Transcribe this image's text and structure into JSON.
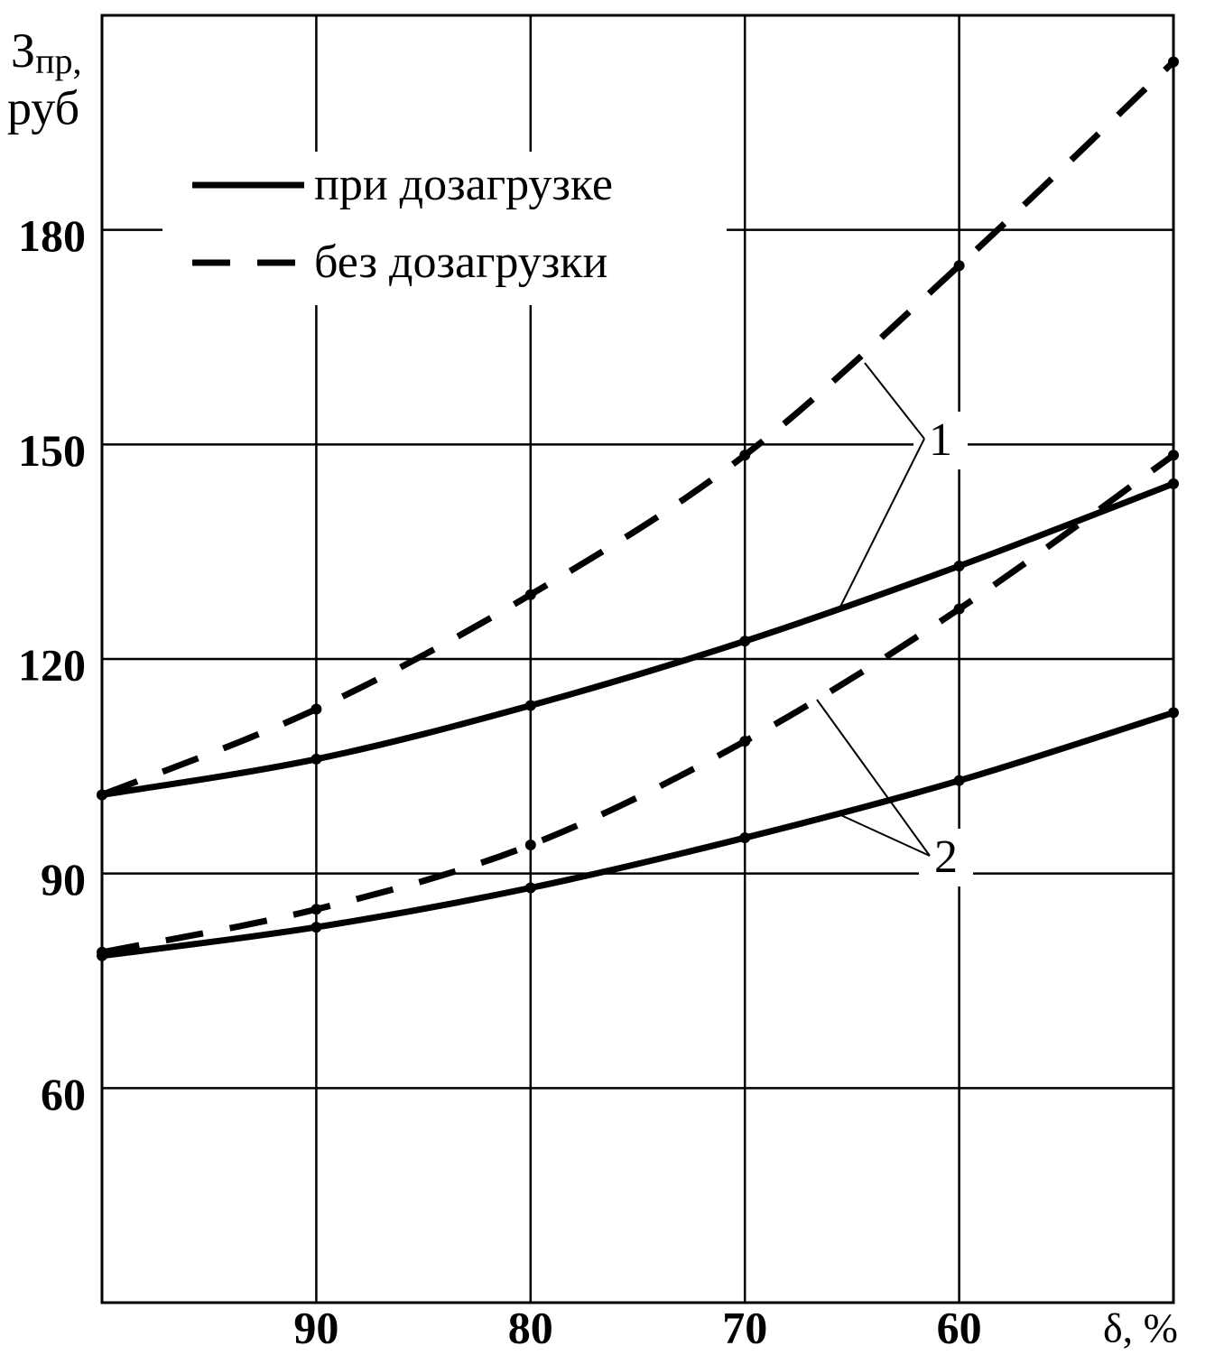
{
  "chart_data": {
    "type": "line",
    "y_label": {
      "main": "З",
      "sub": "пр,",
      "unit": "руб"
    },
    "x_label": "δ, %",
    "x": [
      100,
      90,
      80,
      70,
      60,
      50
    ],
    "xlim": [
      100,
      50
    ],
    "xticks": [
      90,
      80,
      70,
      60
    ],
    "ylim": [
      30,
      210
    ],
    "yticks": [
      60,
      90,
      120,
      150,
      180
    ],
    "grid": true,
    "color": "#000000",
    "legend": [
      {
        "label": "при дозагрузке",
        "style": "solid"
      },
      {
        "label": "без дозагрузки",
        "style": "dashed"
      }
    ],
    "annotations": [
      "1",
      "2"
    ],
    "series": [
      {
        "style": "solid",
        "group": 0,
        "values": [
          101,
          106,
          113.5,
          122.5,
          133,
          144.5
        ]
      },
      {
        "style": "dashed",
        "group": 0,
        "values": [
          101,
          113,
          129,
          148.5,
          175,
          203.5
        ]
      },
      {
        "style": "solid",
        "group": 1,
        "values": [
          78.5,
          82.5,
          88,
          95,
          103,
          112.5
        ]
      },
      {
        "style": "dashed",
        "group": 1,
        "values": [
          79,
          85,
          94,
          108.5,
          127,
          148.5
        ]
      }
    ]
  }
}
